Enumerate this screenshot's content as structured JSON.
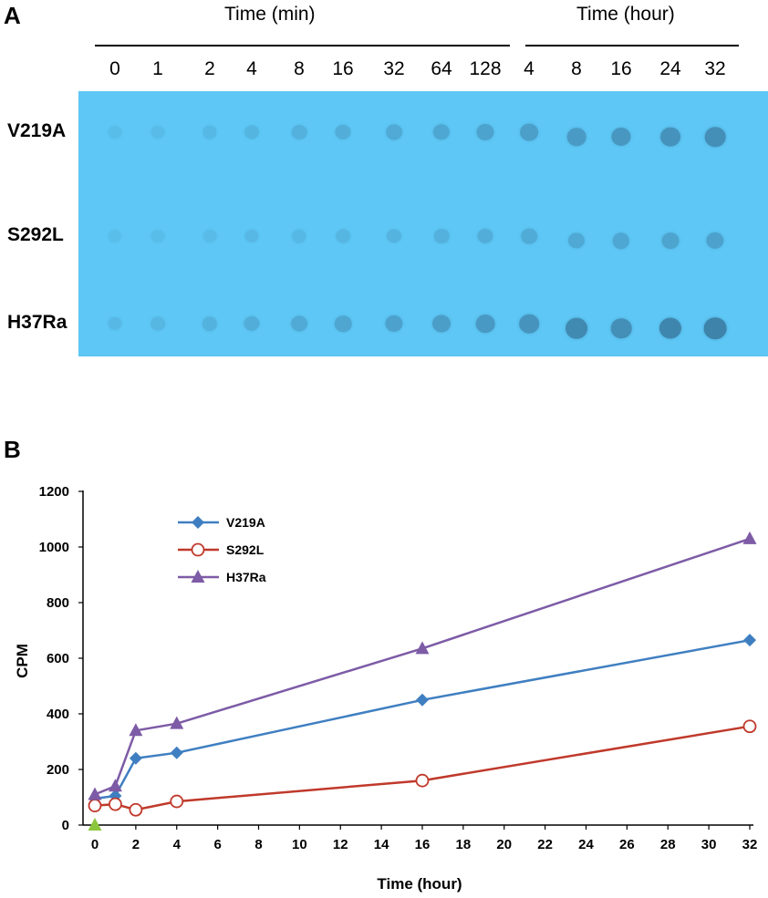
{
  "panel_a": {
    "letter": "A",
    "header_min": "Time (min)",
    "header_hour": "Time (hour)",
    "lanes_min": [
      "0",
      "1",
      "2",
      "4",
      "8",
      "16",
      "32",
      "64",
      "128"
    ],
    "lanes_hour": [
      "4",
      "8",
      "16",
      "24",
      "32"
    ],
    "rows": [
      {
        "label": "V219A",
        "intensity": [
          0.05,
          0.07,
          0.12,
          0.16,
          0.22,
          0.27,
          0.32,
          0.36,
          0.42,
          0.48,
          0.55,
          0.6,
          0.66,
          0.72
        ]
      },
      {
        "label": "S292L",
        "intensity": [
          0.04,
          0.05,
          0.07,
          0.1,
          0.12,
          0.15,
          0.18,
          0.22,
          0.26,
          0.3,
          0.34,
          0.37,
          0.4,
          0.44
        ]
      },
      {
        "label": "H37Ra",
        "intensity": [
          0.1,
          0.14,
          0.2,
          0.26,
          0.32,
          0.38,
          0.44,
          0.5,
          0.56,
          0.64,
          0.82,
          0.72,
          0.85,
          0.9
        ]
      }
    ],
    "blot_color": "#5ec7f5"
  },
  "panel_b": {
    "letter": "B"
  },
  "chart_data": {
    "type": "line",
    "xlabel": "Time (hour)",
    "ylabel": "CPM",
    "xlim": [
      0,
      32
    ],
    "ylim": [
      0,
      1200
    ],
    "xticks": [
      "0",
      "2",
      "4",
      "6",
      "8",
      "10",
      "12",
      "14",
      "16",
      "18",
      "20",
      "22",
      "24",
      "26",
      "28",
      "30",
      "32"
    ],
    "yticks": [
      "0",
      "200",
      "400",
      "600",
      "800",
      "1000",
      "1200"
    ],
    "legend_position": "top-left",
    "series": [
      {
        "name": "V219A",
        "color": "#3f7fc1",
        "marker": "diamond",
        "x": [
          0,
          1,
          2,
          4,
          16,
          32
        ],
        "y": [
          95,
          105,
          240,
          260,
          450,
          665
        ]
      },
      {
        "name": "S292L",
        "color": "#c0392b",
        "marker": "open-circle",
        "x": [
          0,
          1,
          2,
          4,
          16,
          32
        ],
        "y": [
          70,
          75,
          55,
          85,
          160,
          355
        ]
      },
      {
        "name": "H37Ra",
        "color": "#7d5ba6",
        "marker": "triangle",
        "x": [
          0,
          1,
          2,
          4,
          16,
          32
        ],
        "y": [
          110,
          140,
          340,
          365,
          635,
          1030
        ]
      }
    ],
    "origin_marker": {
      "color": "#8cc63f",
      "x": 0,
      "y": 0
    }
  }
}
